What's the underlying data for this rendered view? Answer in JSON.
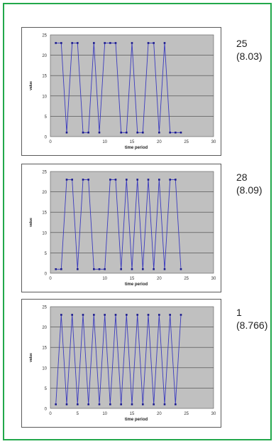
{
  "chart_data": [
    {
      "type": "line",
      "xlabel": "time period",
      "ylabel": "value",
      "xlim": [
        0,
        30
      ],
      "ylim": [
        0,
        25
      ],
      "xticks": [
        "0",
        "10",
        "15",
        "20",
        "25",
        "30"
      ],
      "yticks": [
        "0",
        "5",
        "10",
        "15",
        "20",
        "25"
      ],
      "grid": true,
      "colors": {
        "line": "#3b3bbf",
        "plot_bg": "#c0c0c0"
      },
      "x": [
        1,
        2,
        3,
        4,
        5,
        6,
        7,
        8,
        9,
        10,
        11,
        12,
        13,
        14,
        15,
        16,
        17,
        18,
        19,
        20,
        21,
        22,
        23,
        24
      ],
      "y": [
        23,
        23,
        1,
        23,
        23,
        1,
        1,
        23,
        1,
        23,
        23,
        23,
        1,
        1,
        23,
        1,
        1,
        23,
        23,
        1,
        23,
        1,
        1,
        1
      ]
    },
    {
      "type": "line",
      "xlabel": "time period",
      "ylabel": "value",
      "xlim": [
        0,
        30
      ],
      "ylim": [
        0,
        25
      ],
      "xticks": [
        "0",
        "10",
        "15",
        "20",
        "25",
        "30"
      ],
      "yticks": [
        "0",
        "5",
        "10",
        "15",
        "20",
        "25"
      ],
      "grid": true,
      "colors": {
        "line": "#3b3bbf",
        "plot_bg": "#c0c0c0"
      },
      "x": [
        1,
        2,
        3,
        4,
        5,
        6,
        7,
        8,
        9,
        10,
        11,
        12,
        13,
        14,
        15,
        16,
        17,
        18,
        19,
        20,
        21,
        22,
        23,
        24
      ],
      "y": [
        1,
        1,
        23,
        23,
        1,
        23,
        23,
        1,
        1,
        1,
        23,
        23,
        1,
        23,
        1,
        23,
        1,
        23,
        1,
        23,
        1,
        23,
        23,
        1
      ]
    },
    {
      "type": "line",
      "xlabel": "time period",
      "ylabel": "value",
      "xlim": [
        0,
        30
      ],
      "ylim": [
        0,
        25
      ],
      "xticks": [
        "0",
        "5",
        "10",
        "15",
        "20",
        "25",
        "30"
      ],
      "yticks": [
        "0",
        "5",
        "10",
        "15",
        "20",
        "25"
      ],
      "grid": true,
      "colors": {
        "line": "#3b3bbf",
        "plot_bg": "#c0c0c0"
      },
      "x": [
        1,
        2,
        3,
        4,
        5,
        6,
        7,
        8,
        9,
        10,
        11,
        12,
        13,
        14,
        15,
        16,
        17,
        18,
        19,
        20,
        21,
        22,
        23,
        24
      ],
      "y": [
        1,
        23,
        1,
        23,
        1,
        23,
        1,
        23,
        1,
        23,
        1,
        23,
        1,
        23,
        1,
        23,
        1,
        23,
        1,
        23,
        1,
        23,
        1,
        23
      ]
    }
  ],
  "annotations": [
    {
      "count": "25",
      "value": "(8.03)"
    },
    {
      "count": "28",
      "value": "(8.09)"
    },
    {
      "count": "1",
      "value": "(8.766)"
    }
  ]
}
